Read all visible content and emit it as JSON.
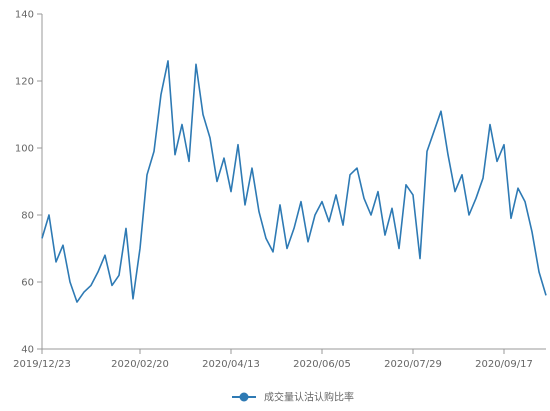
{
  "chart_data": {
    "type": "line",
    "ylim": [
      40,
      140
    ],
    "yticks": [
      40,
      60,
      80,
      100,
      120,
      140
    ],
    "xtick_labels": [
      "2019/12/23",
      "2020/02/20",
      "2020/04/13",
      "2020/06/05",
      "2020/07/29",
      "2020/09/17"
    ],
    "xtick_index": [
      0,
      14,
      27,
      40,
      53,
      66
    ],
    "grid": false,
    "legend_position": "bottom-center",
    "series": [
      {
        "name": "成交量认沽认购比率",
        "color": "#2e7ab4",
        "x_count": 73,
        "values": [
          73,
          80,
          66,
          71,
          60,
          54,
          57,
          59,
          63,
          68,
          59,
          62,
          76,
          55,
          70,
          92,
          99,
          116,
          126,
          98,
          107,
          96,
          125,
          110,
          103,
          90,
          97,
          87,
          101,
          83,
          94,
          81,
          73,
          69,
          83,
          70,
          76,
          84,
          72,
          80,
          84,
          78,
          86,
          77,
          92,
          94,
          85,
          80,
          87,
          74,
          82,
          70,
          89,
          86,
          67,
          99,
          105,
          111,
          98,
          87,
          92,
          80,
          85,
          91,
          107,
          96,
          101,
          79,
          88,
          84,
          75,
          63,
          56
        ]
      }
    ]
  }
}
